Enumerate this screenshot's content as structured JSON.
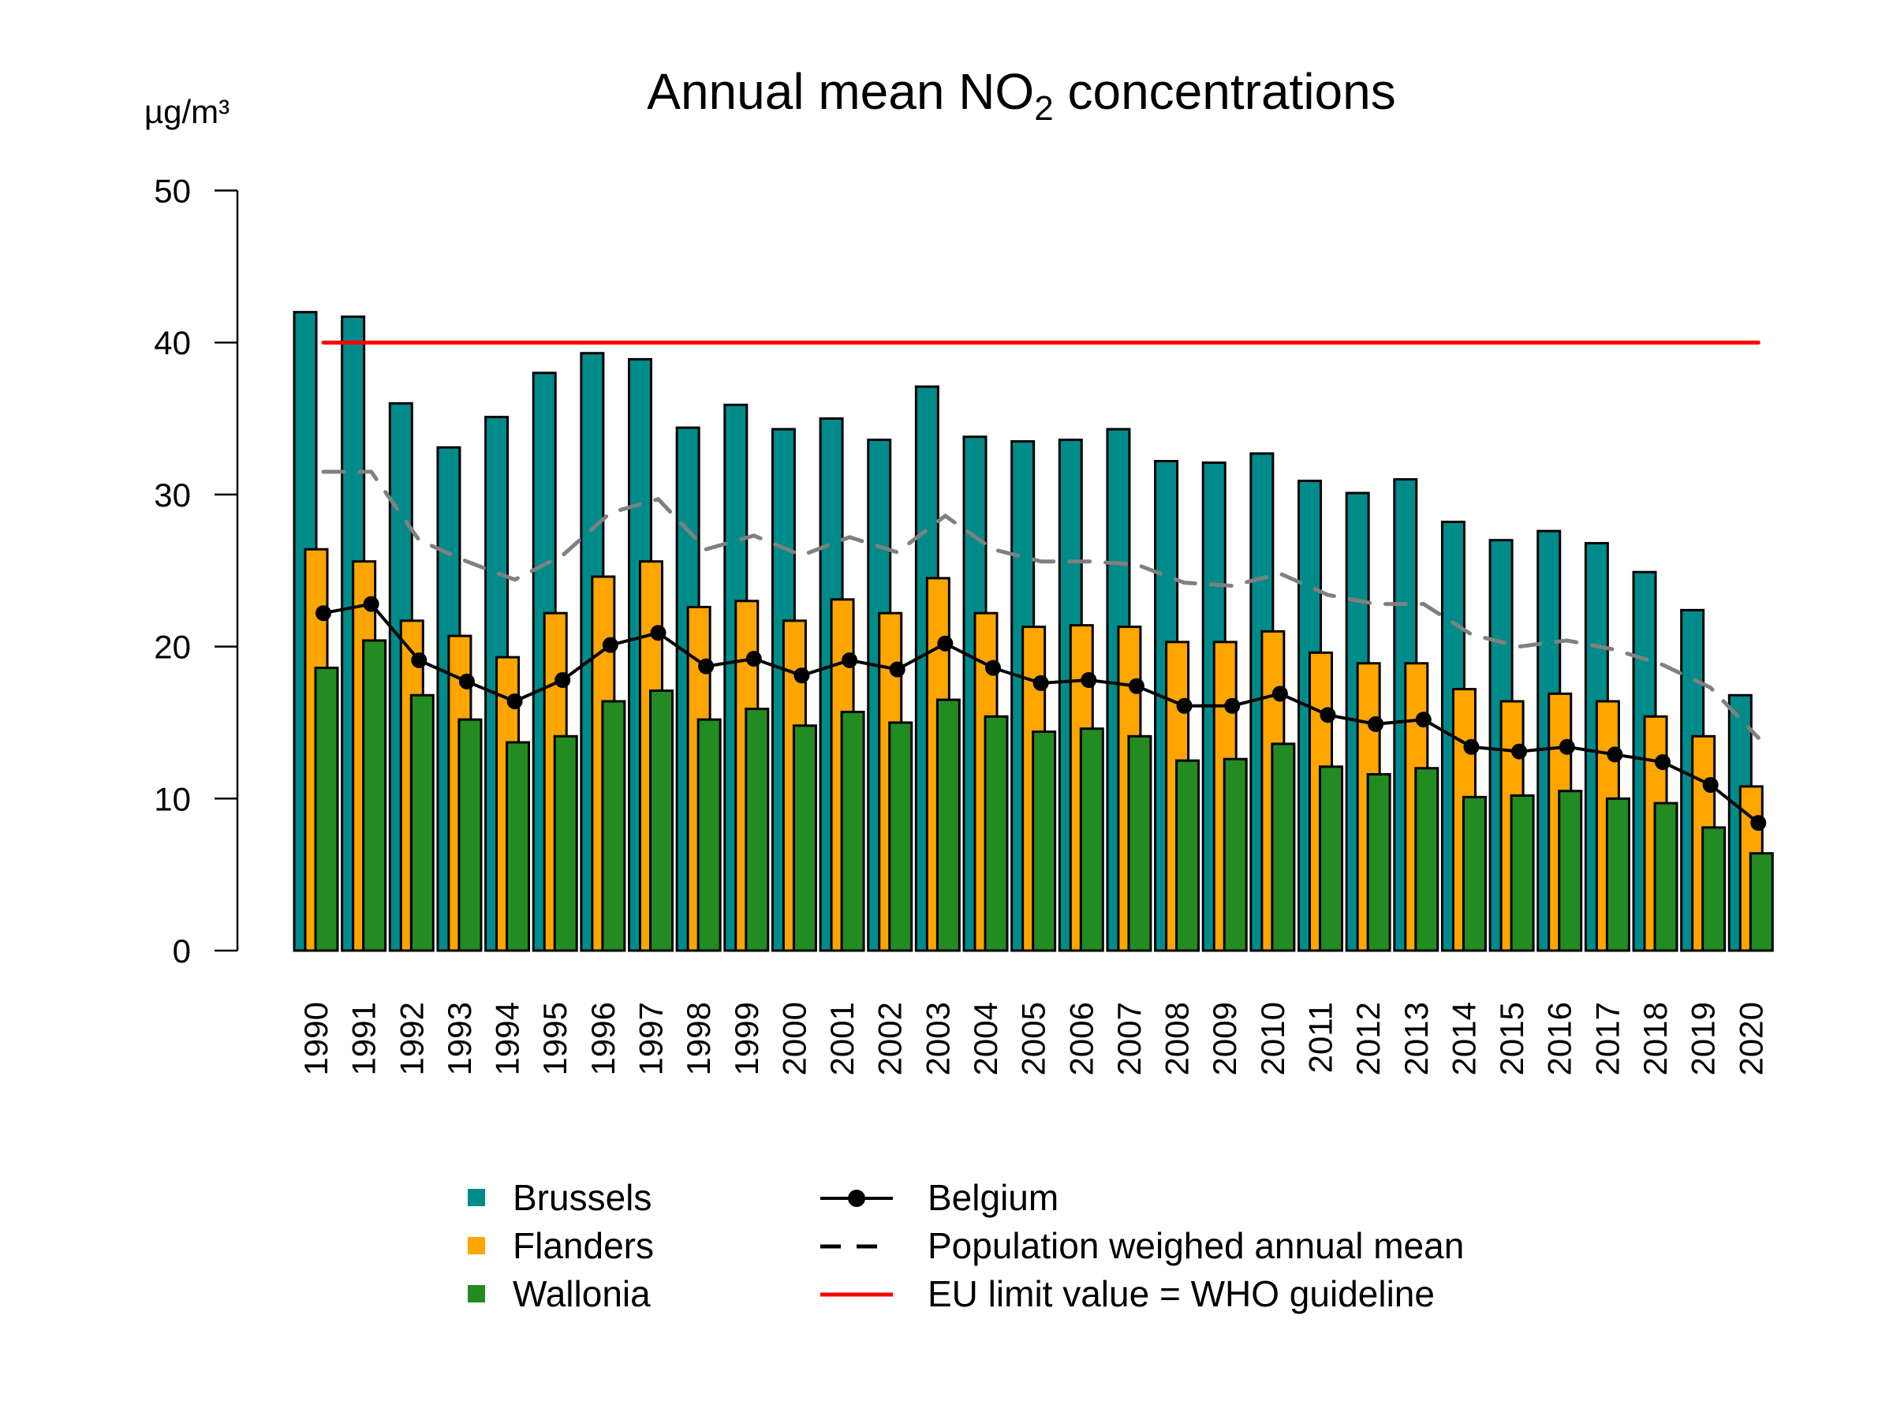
{
  "chart_data": {
    "type": "bar",
    "title_main": "Annual mean NO",
    "title_sub": "2",
    "title_rest": " concentrations",
    "ylabel": "µg/m³",
    "ylim": [
      0,
      50
    ],
    "yticks": [
      "0",
      "10",
      "20",
      "30",
      "40",
      "50"
    ],
    "grid": false,
    "legend_position": "bottom",
    "categories": [
      "1990",
      "1991",
      "1992",
      "1993",
      "1994",
      "1995",
      "1996",
      "1997",
      "1998",
      "1999",
      "2000",
      "2001",
      "2002",
      "2003",
      "2004",
      "2005",
      "2006",
      "2007",
      "2008",
      "2009",
      "2010",
      "2011",
      "2012",
      "2013",
      "2014",
      "2015",
      "2016",
      "2017",
      "2018",
      "2019",
      "2020"
    ],
    "series": [
      {
        "name": "Brussels",
        "type": "bar",
        "color": "#008B8B",
        "values": [
          42.0,
          41.7,
          36.0,
          33.1,
          35.1,
          38.0,
          39.3,
          38.9,
          34.4,
          35.9,
          34.3,
          35.0,
          33.6,
          37.1,
          33.8,
          33.5,
          33.6,
          34.3,
          32.2,
          32.1,
          32.7,
          30.9,
          30.1,
          31.0,
          28.2,
          27.0,
          27.6,
          26.8,
          24.9,
          22.4,
          16.8
        ]
      },
      {
        "name": "Flanders",
        "type": "bar",
        "color": "#FFA500",
        "values": [
          26.4,
          25.6,
          21.7,
          20.7,
          19.3,
          22.2,
          24.6,
          25.6,
          22.6,
          23.0,
          21.7,
          23.1,
          22.2,
          24.5,
          22.2,
          21.3,
          21.4,
          21.3,
          20.3,
          20.3,
          21.0,
          19.6,
          18.9,
          18.9,
          17.2,
          16.4,
          16.9,
          16.4,
          15.4,
          14.1,
          10.8
        ]
      },
      {
        "name": "Wallonia",
        "type": "bar",
        "color": "#228B22",
        "values": [
          18.6,
          20.4,
          16.8,
          15.2,
          13.7,
          14.1,
          16.4,
          17.1,
          15.2,
          15.9,
          14.8,
          15.7,
          15.0,
          16.5,
          15.4,
          14.4,
          14.6,
          14.1,
          12.5,
          12.6,
          13.6,
          12.1,
          11.6,
          12.0,
          10.1,
          10.2,
          10.5,
          10.0,
          9.7,
          8.1,
          6.4
        ]
      },
      {
        "name": "Belgium",
        "type": "line-points",
        "color": "#000000",
        "values": [
          22.2,
          22.8,
          19.1,
          17.7,
          16.4,
          17.8,
          20.1,
          20.9,
          18.7,
          19.2,
          18.1,
          19.1,
          18.5,
          20.2,
          18.6,
          17.6,
          17.8,
          17.4,
          16.1,
          16.1,
          16.9,
          15.5,
          14.9,
          15.2,
          13.4,
          13.1,
          13.4,
          12.9,
          12.4,
          10.9,
          8.4
        ]
      },
      {
        "name": "Population weighed annual mean",
        "type": "dashed-line",
        "color": "#808080",
        "values": [
          31.5,
          31.5,
          27.0,
          25.6,
          24.4,
          26.0,
          28.8,
          29.7,
          26.4,
          27.3,
          26.0,
          27.2,
          26.2,
          28.6,
          26.4,
          25.6,
          25.6,
          25.4,
          24.2,
          24.0,
          24.8,
          23.4,
          22.8,
          22.8,
          20.8,
          20.0,
          20.4,
          19.8,
          18.8,
          17.3,
          14.0
        ]
      },
      {
        "name": "EU limit value = WHO guideline",
        "type": "hline",
        "color": "#FF0000",
        "value": 40
      }
    ]
  }
}
